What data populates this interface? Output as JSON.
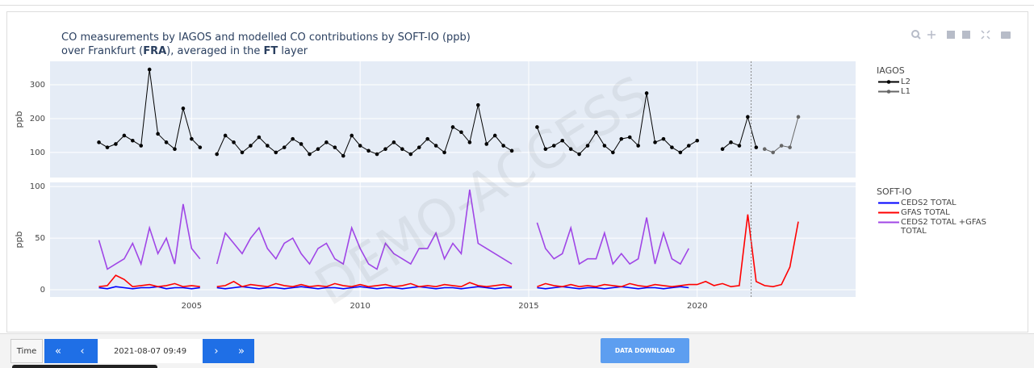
{
  "header": {
    "title_line1": "CO measurements by IAGOS and modelled CO contributions by SOFT-IO (ppb)",
    "title_line2": [
      "over Frankfurt (",
      "FRA",
      "), averaged in the ",
      "FT",
      " layer"
    ]
  },
  "watermark": "DEMO-ACCESS",
  "chart_data": [
    {
      "type": "line",
      "ylabel": "ppb",
      "legend_title": "IAGOS",
      "xlim": [
        2000.8,
        2024.7
      ],
      "xticks": [
        2005,
        2010,
        2015,
        2020
      ],
      "show_xtick_labels": false,
      "ylim": [
        26,
        369
      ],
      "yticks": [
        100,
        200,
        300
      ],
      "grid": true,
      "marker_line": 2021.6,
      "series": [
        {
          "name": "L2",
          "color": "#000000",
          "markers": true,
          "x": [
            2002.25,
            2002.5,
            2002.75,
            2003,
            2003.25,
            2003.5,
            2003.75,
            2004,
            2004.25,
            2004.5,
            2004.75,
            2005,
            2005.25,
            2005.5,
            2005.75,
            2006,
            2006.25,
            2006.5,
            2006.75,
            2007,
            2007.25,
            2007.5,
            2007.75,
            2008,
            2008.25,
            2008.5,
            2008.75,
            2009,
            2009.25,
            2009.5,
            2009.75,
            2010,
            2010.25,
            2010.5,
            2010.75,
            2011,
            2011.25,
            2011.5,
            2011.75,
            2012,
            2012.25,
            2012.5,
            2012.75,
            2013,
            2013.25,
            2013.5,
            2013.75,
            2014,
            2014.25,
            2014.5,
            2014.75,
            2015,
            2015.25,
            2015.5,
            2015.75,
            2016,
            2016.25,
            2016.5,
            2016.75,
            2017,
            2017.25,
            2017.5,
            2017.75,
            2018,
            2018.25,
            2018.5,
            2018.75,
            2019,
            2019.25,
            2019.5,
            2019.75,
            2020,
            2020.25,
            2020.5,
            2020.75,
            2021,
            2021.25,
            2021.5,
            2021.75
          ],
          "values": [
            130,
            115,
            125,
            150,
            135,
            120,
            345,
            155,
            130,
            110,
            230,
            140,
            115,
            null,
            95,
            150,
            130,
            100,
            120,
            145,
            120,
            100,
            115,
            140,
            125,
            95,
            110,
            130,
            115,
            90,
            150,
            120,
            105,
            95,
            110,
            130,
            110,
            95,
            115,
            140,
            120,
            100,
            175,
            160,
            130,
            240,
            125,
            150,
            120,
            105,
            null,
            null,
            175,
            110,
            120,
            135,
            110,
            95,
            120,
            160,
            120,
            100,
            140,
            145,
            120,
            275,
            130,
            140,
            115,
            100,
            120,
            135,
            null,
            null,
            110,
            130,
            120,
            205,
            115
          ]
        },
        {
          "name": "L1",
          "color": "#666666",
          "markers": true,
          "x": [
            2022,
            2022.25,
            2022.5,
            2022.75,
            2023
          ],
          "values": [
            110,
            100,
            120,
            115,
            205
          ]
        }
      ]
    },
    {
      "type": "line",
      "ylabel": "ppb",
      "legend_title": "SOFT-IO",
      "xlim": [
        2000.8,
        2024.7
      ],
      "xticks": [
        2005,
        2010,
        2015,
        2020
      ],
      "show_xtick_labels": true,
      "ylim": [
        -7,
        104
      ],
      "yticks": [
        0,
        50,
        100
      ],
      "grid": true,
      "marker_line": 2021.6,
      "x": [
        2002.25,
        2002.5,
        2002.75,
        2003,
        2003.25,
        2003.5,
        2003.75,
        2004,
        2004.25,
        2004.5,
        2004.75,
        2005,
        2005.25,
        2005.5,
        2005.75,
        2006,
        2006.25,
        2006.5,
        2006.75,
        2007,
        2007.25,
        2007.5,
        2007.75,
        2008,
        2008.25,
        2008.5,
        2008.75,
        2009,
        2009.25,
        2009.5,
        2009.75,
        2010,
        2010.25,
        2010.5,
        2010.75,
        2011,
        2011.25,
        2011.5,
        2011.75,
        2012,
        2012.25,
        2012.5,
        2012.75,
        2013,
        2013.25,
        2013.5,
        2013.75,
        2014,
        2014.25,
        2014.5,
        2014.75,
        2015,
        2015.25,
        2015.5,
        2015.75,
        2016,
        2016.25,
        2016.5,
        2016.75,
        2017,
        2017.25,
        2017.5,
        2017.75,
        2018,
        2018.25,
        2018.5,
        2018.75,
        2019,
        2019.25,
        2019.5,
        2019.75,
        2020,
        2020.25,
        2020.5,
        2020.75,
        2021,
        2021.25,
        2021.5,
        2021.75,
        2022,
        2022.25,
        2022.5,
        2022.75,
        2023
      ],
      "series": [
        {
          "name": "CEDS2 TOTAL",
          "color": "#0000ff",
          "values": [
            2,
            1,
            3,
            2,
            1,
            2,
            2,
            3,
            1,
            2,
            2,
            1,
            2,
            null,
            2,
            1,
            2,
            3,
            2,
            1,
            2,
            2,
            1,
            2,
            3,
            2,
            1,
            2,
            2,
            1,
            2,
            3,
            2,
            1,
            2,
            2,
            1,
            2,
            3,
            2,
            1,
            2,
            2,
            1,
            2,
            3,
            2,
            1,
            2,
            2,
            null,
            null,
            2,
            1,
            2,
            3,
            2,
            1,
            2,
            2,
            1,
            2,
            3,
            2,
            1,
            2,
            2,
            1,
            2,
            3,
            2,
            null,
            null,
            null,
            null,
            null,
            null,
            null,
            null,
            null,
            null,
            null,
            null,
            null
          ]
        },
        {
          "name": "CEDS2 TOTAL +GFAS TOTAL",
          "color": "#a046e6",
          "values": [
            48,
            20,
            25,
            30,
            45,
            25,
            60,
            35,
            50,
            25,
            83,
            40,
            30,
            null,
            25,
            55,
            45,
            35,
            50,
            60,
            40,
            30,
            45,
            50,
            35,
            25,
            40,
            45,
            30,
            25,
            60,
            40,
            25,
            20,
            45,
            35,
            30,
            25,
            40,
            40,
            55,
            30,
            45,
            35,
            97,
            45,
            40,
            35,
            30,
            25,
            null,
            null,
            65,
            40,
            30,
            35,
            60,
            25,
            30,
            30,
            55,
            25,
            35,
            25,
            30,
            70,
            25,
            55,
            30,
            25,
            40,
            null,
            null,
            null,
            null,
            null,
            null,
            null,
            null,
            null,
            null,
            null,
            null,
            null
          ]
        },
        {
          "name": "GFAS TOTAL",
          "color": "#ff0000",
          "values": [
            3,
            4,
            14,
            10,
            3,
            4,
            5,
            3,
            4,
            6,
            3,
            4,
            3,
            null,
            3,
            4,
            8,
            3,
            5,
            4,
            3,
            6,
            4,
            3,
            5,
            3,
            4,
            3,
            6,
            4,
            3,
            5,
            3,
            4,
            5,
            3,
            4,
            6,
            3,
            4,
            3,
            5,
            4,
            3,
            7,
            4,
            3,
            4,
            5,
            3,
            null,
            null,
            3,
            6,
            4,
            3,
            5,
            3,
            4,
            3,
            5,
            4,
            3,
            6,
            4,
            3,
            5,
            4,
            3,
            4,
            5,
            5,
            8,
            4,
            6,
            3,
            4,
            73,
            8,
            4,
            3,
            5,
            22,
            66
          ]
        }
      ],
      "legend_order": [
        0,
        2,
        1
      ]
    }
  ],
  "controls": {
    "time_label": "Time",
    "first": "«",
    "prev": "‹",
    "date": "2021-08-07 09:49",
    "next": "›",
    "last": "»",
    "download": "DATA DOWNLOAD"
  }
}
